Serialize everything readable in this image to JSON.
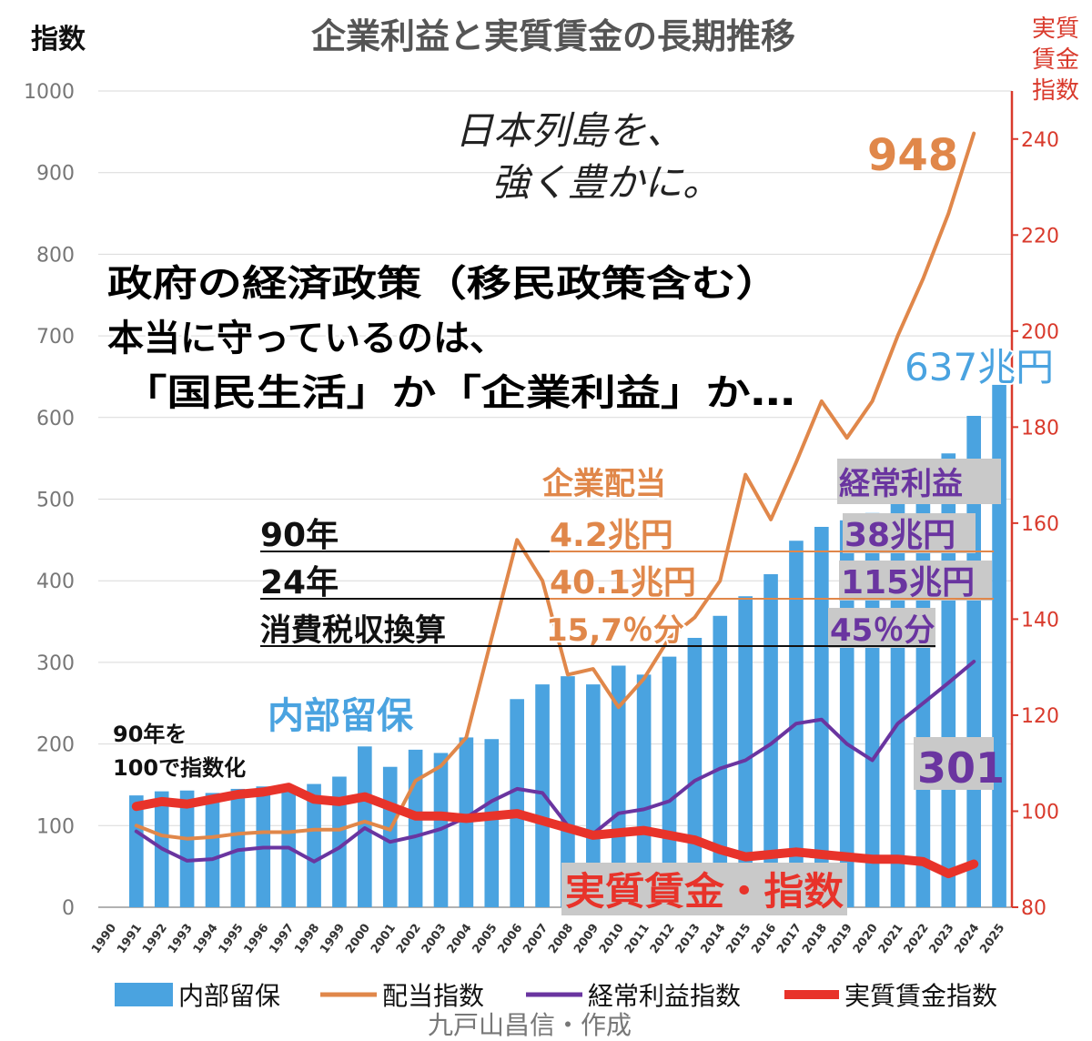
{
  "chart_data": {
    "type": "bar",
    "title": "企業利益と実質賃金の長期推移",
    "ylabel_left": "指数",
    "ylabel_right": [
      "実質",
      "賃金",
      "指数"
    ],
    "ylim_left": [
      0,
      1000
    ],
    "ylim_right": [
      80,
      250
    ],
    "yticks_left": [
      "0",
      "100",
      "200",
      "300",
      "400",
      "500",
      "600",
      "700",
      "800",
      "900",
      "1000"
    ],
    "yticks_right": [
      "80",
      "100",
      "120",
      "140",
      "160",
      "180",
      "200",
      "220",
      "240"
    ],
    "categories": [
      "1990",
      "1991",
      "1992",
      "1993",
      "1994",
      "1995",
      "1996",
      "1997",
      "1998",
      "1999",
      "2000",
      "2001",
      "2002",
      "2003",
      "2004",
      "2005",
      "2006",
      "2007",
      "2008",
      "2009",
      "2010",
      "2011",
      "2012",
      "2013",
      "2014",
      "2015",
      "2016",
      "2017",
      "2018",
      "2019",
      "2020",
      "2021",
      "2022",
      "2023",
      "2024",
      "2025"
    ],
    "grid": true,
    "legend_position": "bottom",
    "series": [
      {
        "name": "内部留保",
        "kind": "bar",
        "axis": "left",
        "color": "#4aa3e0",
        "values": [
          null,
          137,
          142,
          143,
          140,
          145,
          148,
          147,
          151,
          160,
          197,
          172,
          193,
          189,
          208,
          206,
          255,
          273,
          283,
          273,
          296,
          285,
          307,
          330,
          357,
          381,
          408,
          449,
          466,
          474,
          483,
          502,
          520,
          556,
          602,
          640
        ]
      },
      {
        "name": "配当指数",
        "kind": "line",
        "axis": "left",
        "color": "#e0874a",
        "values": [
          null,
          100,
          88,
          84,
          86,
          90,
          92,
          92,
          95,
          95,
          105,
          95,
          155,
          173,
          208,
          330,
          450,
          400,
          285,
          292,
          245,
          280,
          330,
          355,
          400,
          530,
          475,
          545,
          620,
          575,
          620,
          700,
          770,
          850,
          948,
          null
        ]
      },
      {
        "name": "経常利益指数",
        "kind": "line",
        "axis": "left",
        "color": "#6a35a0",
        "values": [
          null,
          93,
          72,
          57,
          59,
          70,
          73,
          73,
          56,
          73,
          97,
          80,
          87,
          96,
          110,
          130,
          145,
          140,
          100,
          90,
          115,
          120,
          130,
          155,
          170,
          180,
          200,
          225,
          230,
          200,
          180,
          225,
          250,
          275,
          301,
          null
        ]
      },
      {
        "name": "実質賃金指数",
        "kind": "line",
        "axis": "right",
        "color": "#e8332a",
        "values": [
          null,
          101,
          102,
          101.5,
          102.5,
          103.5,
          104,
          105,
          102.5,
          102,
          103,
          101,
          99,
          99,
          98.5,
          99,
          99.5,
          98,
          96.5,
          95,
          95.5,
          96,
          95,
          94,
          92,
          90.5,
          91,
          91.5,
          91,
          90.5,
          90,
          90,
          89.5,
          87,
          89,
          null
        ]
      }
    ],
    "annotations": {
      "slogan": [
        "日本列島を、",
        "強く豊かに。"
      ],
      "headline": [
        "政府の経済政策（移民政策含む）",
        "本当に守っているのは、",
        "「国民生活」か「企業利益」か…"
      ],
      "value_948": "948",
      "value_637": "637兆円",
      "value_301": "301",
      "label_internal": "内部留保",
      "label_wage": "実質賃金・指数",
      "index_note": [
        "90年を",
        "100で指数化"
      ],
      "table": {
        "col_dividend": "企業配当",
        "col_profit": "経常利益",
        "rows": [
          {
            "label": "90年",
            "dividend": "4.2兆円",
            "profit": "38兆円"
          },
          {
            "label": "24年",
            "dividend": "40.1兆円",
            "profit": "115兆円"
          },
          {
            "label": "消費税収換算",
            "dividend": "15,7％分",
            "profit": "45％分"
          }
        ]
      },
      "credit": "九戸山昌信・作成"
    },
    "colors": {
      "bar": "#4aa3e0",
      "dividend": "#e0874a",
      "profit": "#6a35a0",
      "wage": "#e8332a",
      "right_axis": "#d93a2c",
      "label_box": "#c9c9c9"
    }
  }
}
